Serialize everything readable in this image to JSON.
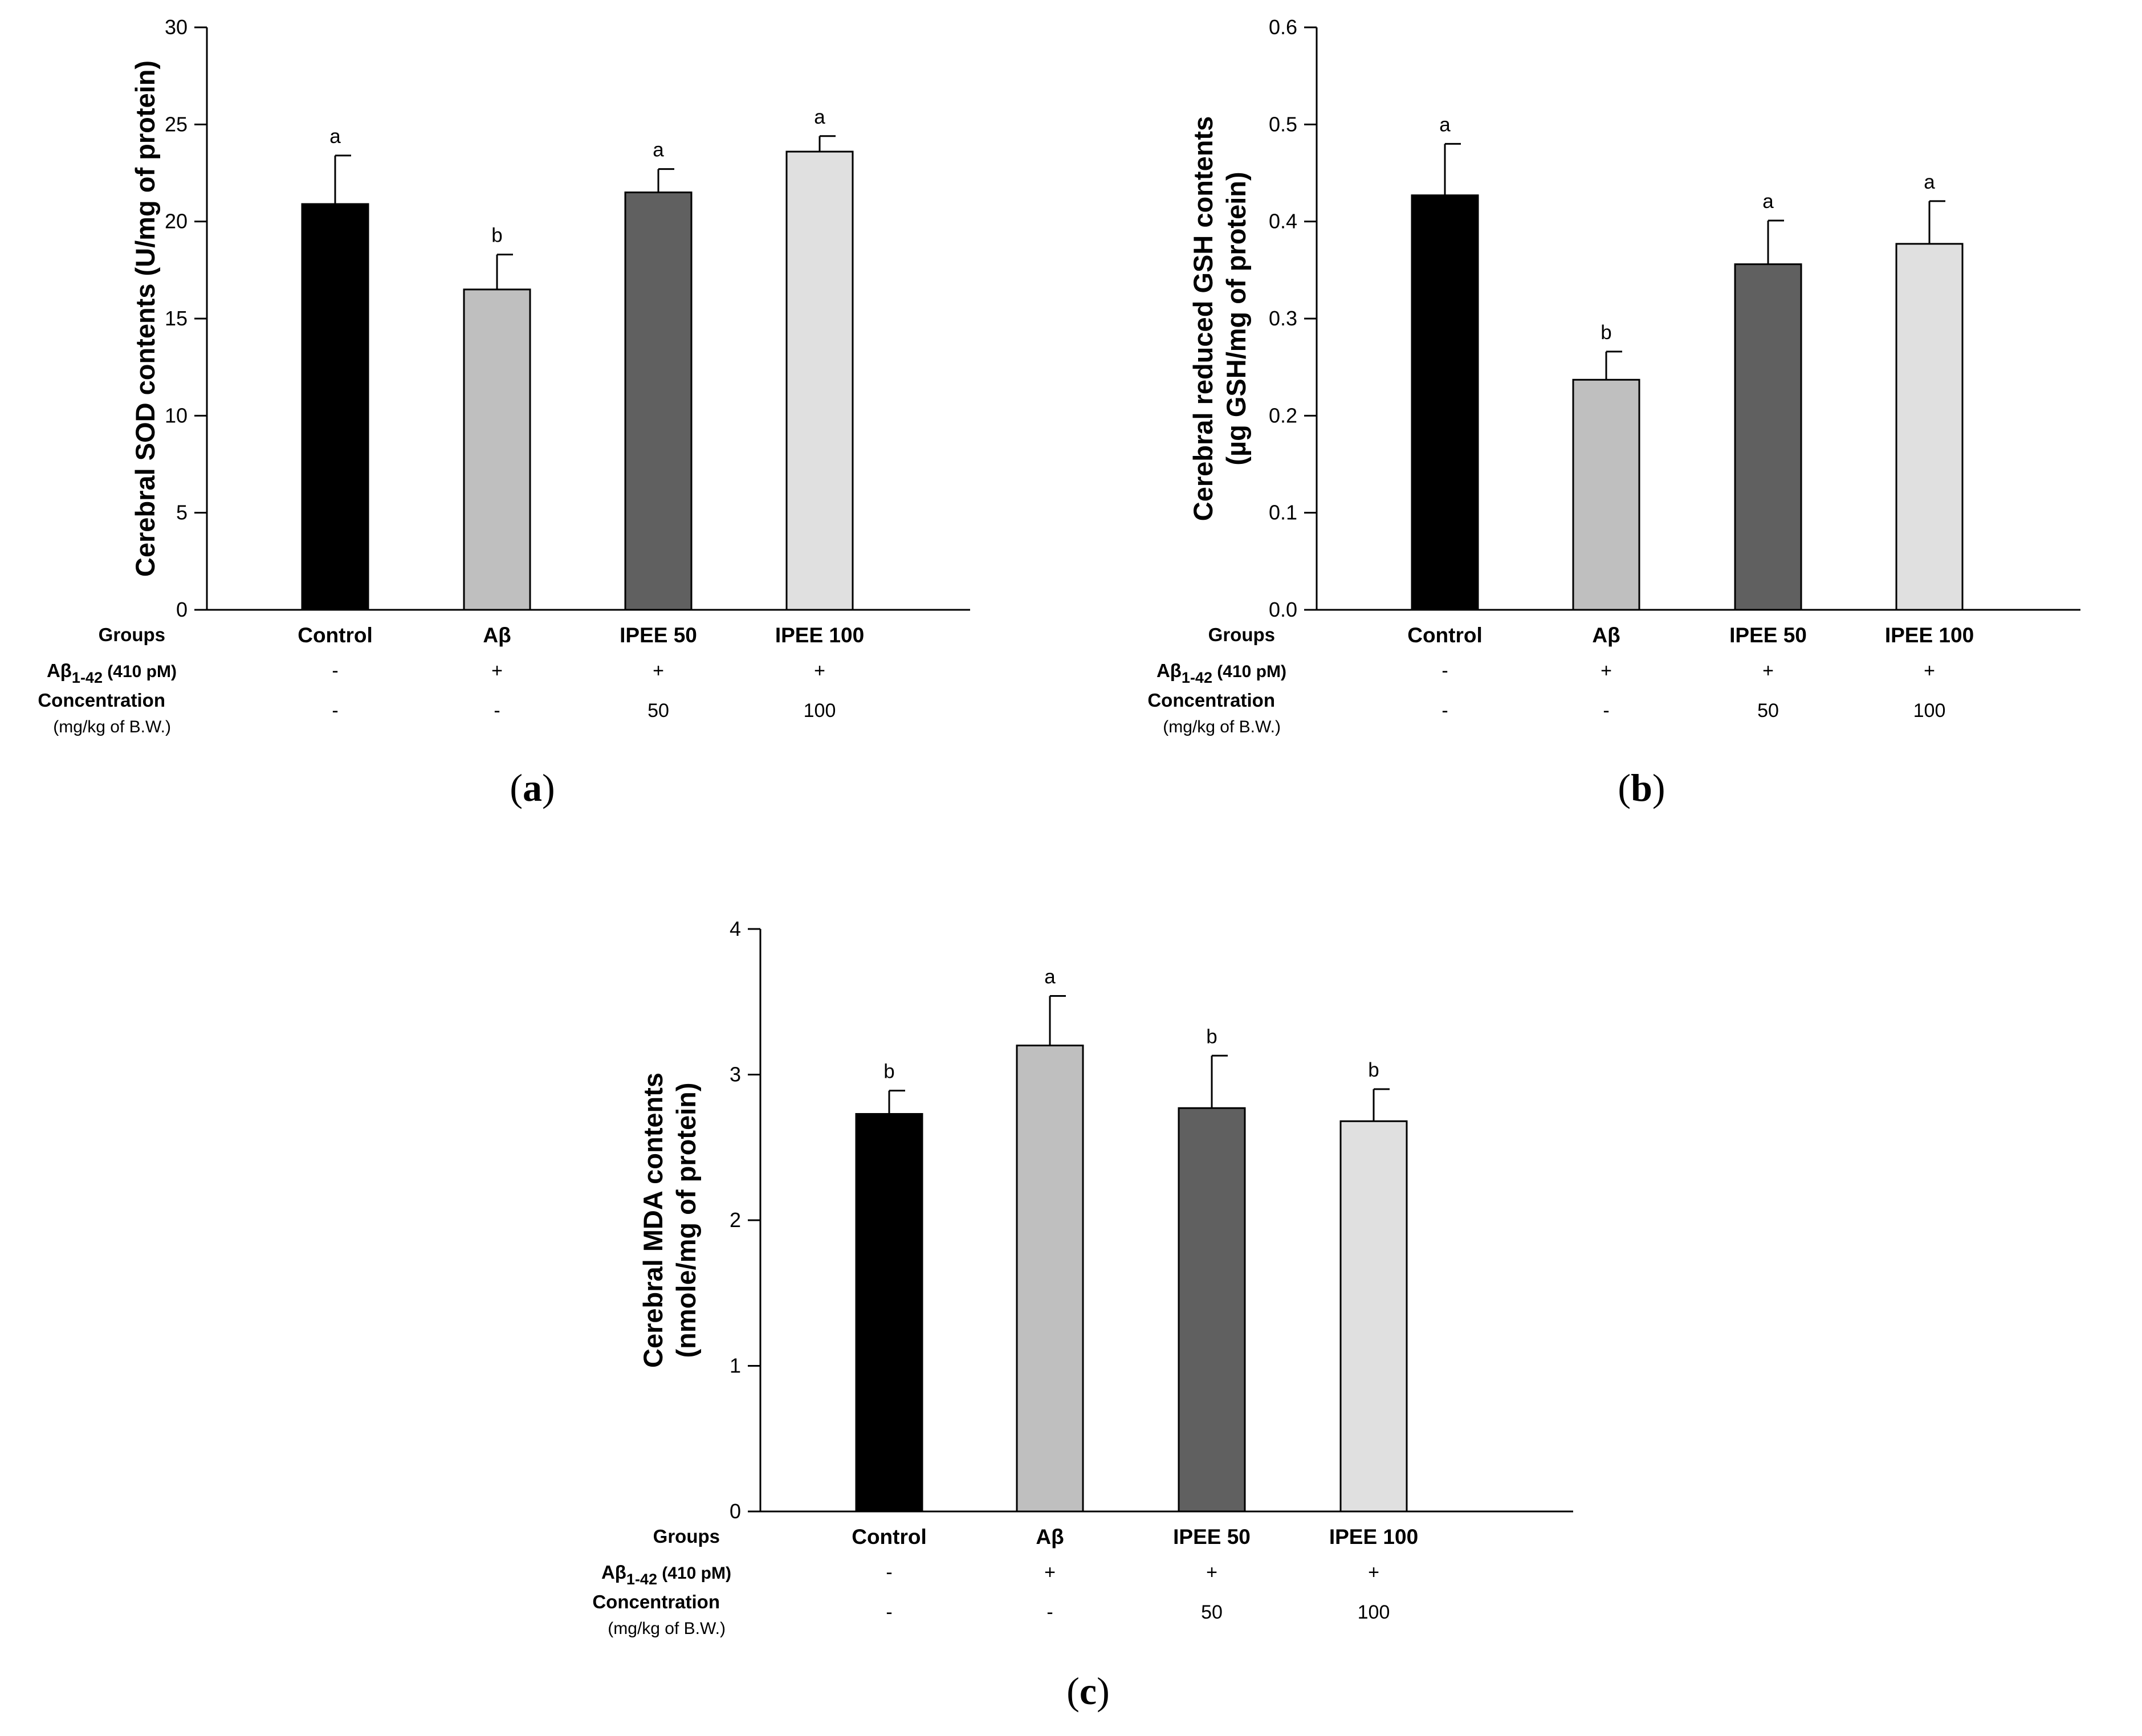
{
  "colors": {
    "bar_fills": [
      "#000000",
      "#bfbfbf",
      "#606060",
      "#e0e0e0"
    ],
    "stroke": "#000000",
    "background": "#ffffff"
  },
  "chart_data": [
    {
      "type": "bar",
      "panel_label": "a",
      "ylabel": "Cerebral SOD contents (U/mg of protein)",
      "ylabel_lines": [
        "Cerebral SOD contents (U/mg of protein)"
      ],
      "ylim": [
        0,
        30
      ],
      "yticks": [
        0,
        5,
        10,
        15,
        20,
        25,
        30
      ],
      "ytick_labels": [
        "0",
        "5",
        "10",
        "15",
        "20",
        "25",
        "30"
      ],
      "categories": [
        "Control",
        "Aβ",
        "IPEE 50",
        "IPEE 100"
      ],
      "values": [
        20.9,
        16.5,
        21.5,
        23.6
      ],
      "errors": [
        2.5,
        1.8,
        1.2,
        0.8
      ],
      "significance": [
        "a",
        "b",
        "a",
        "a"
      ],
      "table": {
        "groups_label": "Groups",
        "abeta_label": "Aβ",
        "abeta_sub": "1-42",
        "abeta_dose": "(410 pM)",
        "abeta_values": [
          "-",
          "+",
          "+",
          "+"
        ],
        "conc_label": "Concentration",
        "conc_unit": "(mg/kg of B.W.)",
        "conc_values": [
          "-",
          "-",
          "50",
          "100"
        ]
      }
    },
    {
      "type": "bar",
      "panel_label": "b",
      "ylabel": "Cerebral reduced GSH contents (µg GSH/mg of protein)",
      "ylabel_lines": [
        "Cerebral reduced GSH contents",
        "(µg GSH/mg of protein)"
      ],
      "ylim": [
        0,
        0.6
      ],
      "yticks": [
        0,
        0.1,
        0.2,
        0.3,
        0.4,
        0.5,
        0.6
      ],
      "ytick_labels": [
        "0.0",
        "0.1",
        "0.2",
        "0.3",
        "0.4",
        "0.5",
        "0.6"
      ],
      "categories": [
        "Control",
        "Aβ",
        "IPEE 50",
        "IPEE 100"
      ],
      "values": [
        0.427,
        0.237,
        0.356,
        0.377
      ],
      "errors": [
        0.053,
        0.029,
        0.045,
        0.044
      ],
      "significance": [
        "a",
        "b",
        "a",
        "a"
      ],
      "table": {
        "groups_label": "Groups",
        "abeta_label": "Aβ",
        "abeta_sub": "1-42",
        "abeta_dose": "(410 pM)",
        "abeta_values": [
          "-",
          "+",
          "+",
          "+"
        ],
        "conc_label": "Concentration",
        "conc_unit": "(mg/kg of B.W.)",
        "conc_values": [
          "-",
          "-",
          "50",
          "100"
        ]
      }
    },
    {
      "type": "bar",
      "panel_label": "c",
      "ylabel": "Cerebral MDA contents (nmole/mg of protein)",
      "ylabel_lines": [
        "Cerebral MDA contents",
        "(nmole/mg of protein)"
      ],
      "ylim": [
        0,
        4
      ],
      "yticks": [
        0,
        1,
        2,
        3,
        4
      ],
      "ytick_labels": [
        "0",
        "1",
        "2",
        "3",
        "4"
      ],
      "categories": [
        "Control",
        "Aβ",
        "IPEE 50",
        "IPEE 100"
      ],
      "values": [
        2.73,
        3.2,
        2.77,
        2.68
      ],
      "errors": [
        0.16,
        0.34,
        0.36,
        0.22
      ],
      "significance": [
        "b",
        "a",
        "b",
        "b"
      ],
      "table": {
        "groups_label": "Groups",
        "abeta_label": "Aβ",
        "abeta_sub": "1-42",
        "abeta_dose": "(410 pM)",
        "abeta_values": [
          "-",
          "+",
          "+",
          "+"
        ],
        "conc_label": "Concentration",
        "conc_unit": "(mg/kg of B.W.)",
        "conc_values": [
          "-",
          "-",
          "50",
          "100"
        ]
      }
    }
  ]
}
